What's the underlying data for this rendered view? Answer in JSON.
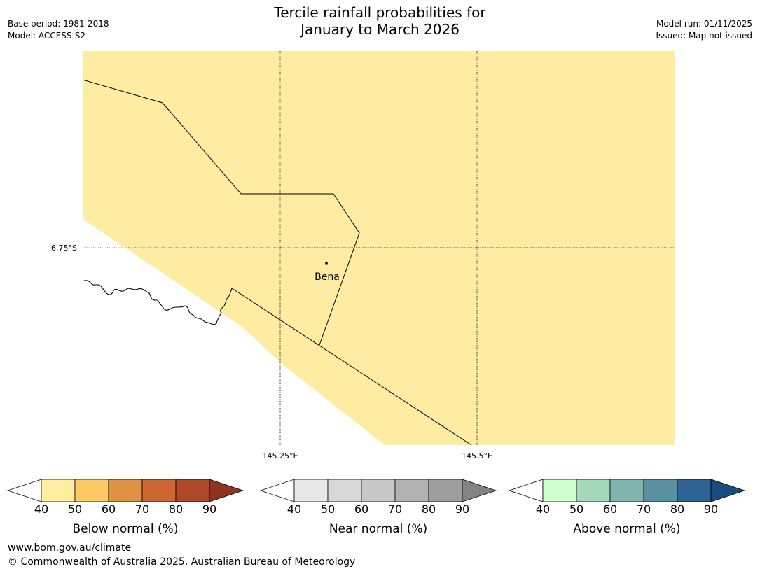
{
  "title": {
    "line1": "Tercile rainfall probabilities for",
    "line2": "January to March 2026"
  },
  "meta": {
    "base_period": "Base period: 1981-2018",
    "model": "Model: ACCESS-S2",
    "model_run": "Model run: 01/11/2025",
    "issued": "Issued: Map not issued"
  },
  "map": {
    "fill_color": "#fdeca2",
    "place": "Bena",
    "lat_label": "6.75°S",
    "lon_labels": [
      "145.25°E",
      "145.5°E"
    ]
  },
  "legends": [
    {
      "name": "below",
      "label": "Below normal (%)",
      "colors": [
        "#ffeda0",
        "#fec864",
        "#e09244",
        "#cd6633",
        "#af4828"
      ],
      "extend_color": "#8f3320",
      "ticks": [
        "40",
        "50",
        "60",
        "70",
        "80",
        "90"
      ]
    },
    {
      "name": "near",
      "label": "Near normal (%)",
      "colors": [
        "#e8e8e8",
        "#d9d9d9",
        "#c8c8c8",
        "#b3b3b3",
        "#9e9e9e"
      ],
      "extend_color": "#838383",
      "ticks": [
        "40",
        "50",
        "60",
        "70",
        "80",
        "90"
      ]
    },
    {
      "name": "above",
      "label": "Above normal (%)",
      "colors": [
        "#ccffcc",
        "#a4d9b9",
        "#80b4ae",
        "#5a91a0",
        "#2e6398"
      ],
      "extend_color": "#194b81",
      "ticks": [
        "40",
        "50",
        "60",
        "70",
        "80",
        "90"
      ]
    }
  ],
  "footer": {
    "url": "www.bom.gov.au/climate",
    "copyright": "© Commonwealth of Australia 2025, Australian Bureau of Meteorology"
  }
}
